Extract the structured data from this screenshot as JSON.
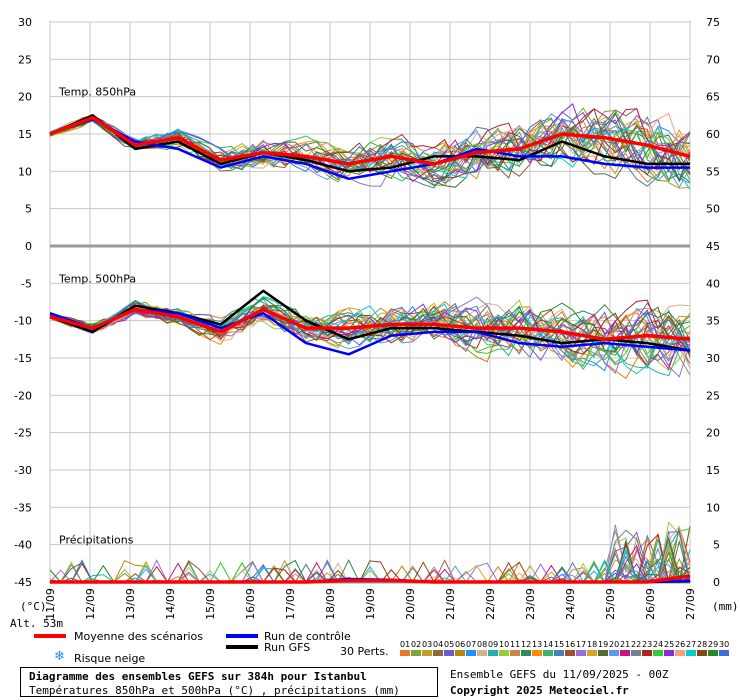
{
  "chart_data": {
    "type": "line",
    "title": "Diagramme des ensembles GEFS sur 384h pour Istanbul",
    "subtitle": "Températures 850hPa et 500hPa (°C) , précipitations (mm)",
    "run_info": "Ensemble GEFS du 11/09/2025 - 00Z",
    "copyright": "Copyright 2025 Meteociel.fr",
    "altitude": "Alt. 53m",
    "left_unit": "(°C)",
    "right_unit": "(mm)",
    "perts_label": "30 Perts.",
    "x_dates": [
      "11/09",
      "12/09",
      "13/09",
      "14/09",
      "15/09",
      "16/09",
      "17/09",
      "18/09",
      "19/09",
      "20/09",
      "21/09",
      "22/09",
      "23/09",
      "24/09",
      "25/09",
      "26/09",
      "27/09"
    ],
    "y_left_ticks": [
      "30",
      "25",
      "20",
      "15",
      "10",
      "5",
      "0",
      "-5",
      "-10",
      "-15",
      "-20",
      "-25",
      "-30",
      "-35",
      "-40",
      "-45"
    ],
    "y_right_ticks": [
      "75",
      "70",
      "65",
      "60",
      "55",
      "50",
      "45",
      "40",
      "35",
      "30",
      "25",
      "20",
      "15",
      "10",
      "5",
      "0"
    ],
    "ylim_left": [
      -45,
      30
    ],
    "panels": {
      "t850": {
        "label": "Temp. 850hPa"
      },
      "t500": {
        "label": "Temp. 500hPa"
      },
      "precip": {
        "label": "Précipitations"
      }
    },
    "legend": {
      "mean": {
        "label": "Moyenne des scénarios",
        "color": "#ff0000"
      },
      "control": {
        "label": "Run de contrôle",
        "color": "#0000ff"
      },
      "gfs": {
        "label": "Run GFS",
        "color": "#000000"
      },
      "snow": {
        "label": "Risque neige"
      }
    },
    "perturbation_ids": [
      "01",
      "02",
      "03",
      "04",
      "05",
      "06",
      "07",
      "08",
      "09",
      "10",
      "11",
      "12",
      "13",
      "14",
      "15",
      "16",
      "17",
      "18",
      "19",
      "20",
      "21",
      "22",
      "23",
      "24",
      "25",
      "26",
      "27",
      "28",
      "29",
      "30"
    ],
    "perturbation_colors": [
      "#e87a24",
      "#7aa63c",
      "#c0a020",
      "#8b6b3a",
      "#6a5acd",
      "#b8860b",
      "#1e90ff",
      "#d2b48c",
      "#20b2aa",
      "#9acd32",
      "#cd853f",
      "#2e8b57",
      "#ff8c00",
      "#3cb371",
      "#4682b4",
      "#a0522d",
      "#9370db",
      "#daa520",
      "#556b2f",
      "#6495ed",
      "#c71585",
      "#708090",
      "#b22222",
      "#32cd32",
      "#8a2be2",
      "#ffa07a",
      "#00ced1",
      "#8b4513",
      "#228b22",
      "#4169e1"
    ],
    "series": [
      {
        "name": "Moyenne des scénarios",
        "t850": [
          15,
          17.2,
          13.5,
          14.5,
          11.5,
          12.5,
          12,
          11,
          12,
          11,
          12.5,
          13,
          15,
          14.5,
          13.5,
          12
        ],
        "t500": [
          -9.5,
          -11,
          -8.5,
          -9.5,
          -11.5,
          -8.5,
          -11,
          -11,
          -10.5,
          -10.5,
          -11,
          -11,
          -11.5,
          -12.5,
          -12,
          -12.5
        ],
        "precip": [
          0,
          0,
          0,
          0,
          0,
          0,
          0,
          0.2,
          0.2,
          0,
          0,
          0,
          0,
          0,
          0,
          0.8
        ]
      },
      {
        "name": "Run de contrôle",
        "t850": [
          15,
          17,
          14,
          13,
          10.5,
          12,
          11,
          9,
          10,
          11,
          13,
          12,
          12,
          11,
          10.5,
          10.5
        ],
        "t500": [
          -9,
          -11,
          -8.5,
          -9,
          -11,
          -9,
          -13,
          -14.5,
          -12,
          -11.5,
          -11.5,
          -13,
          -13.5,
          -13,
          -13.5,
          -14
        ],
        "precip": [
          0,
          0,
          0,
          0,
          0,
          0,
          0,
          0.4,
          0.3,
          0,
          0,
          0,
          0,
          0,
          0,
          0.2
        ]
      },
      {
        "name": "Run GFS",
        "t850": [
          15,
          17.5,
          13,
          14,
          11,
          12.5,
          11.5,
          10,
          10.5,
          12,
          12,
          11.5,
          14,
          12,
          11,
          11
        ],
        "t500": [
          -9.5,
          -11.5,
          -8,
          -9,
          -10.5,
          -6,
          -10,
          -12.5,
          -11,
          -11,
          -11.5,
          -12,
          -13,
          -12.5,
          -13,
          -14
        ],
        "precip": [
          0,
          0,
          0,
          0,
          0,
          0,
          0,
          0.3,
          0.2,
          0,
          0,
          0,
          0,
          0,
          0,
          0.1
        ]
      }
    ]
  }
}
